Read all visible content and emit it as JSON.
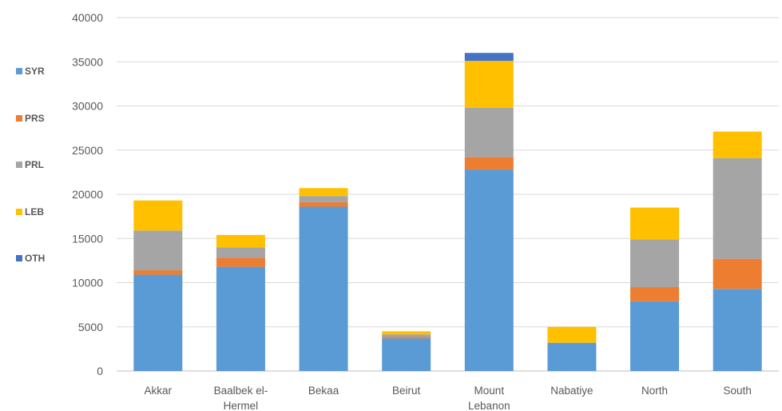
{
  "chart_data": {
    "type": "bar",
    "stacked": true,
    "title": "",
    "xlabel": "",
    "ylabel": "",
    "ylim": [
      0,
      40000
    ],
    "yticks": [
      0,
      5000,
      10000,
      15000,
      20000,
      25000,
      30000,
      35000,
      40000
    ],
    "grid": true,
    "legend_position": "left",
    "categories": [
      "Akkar",
      "Baalbek el-Hermel",
      "Bekaa",
      "Beirut",
      "Mount Lebanon",
      "Nabatiye",
      "North",
      "South"
    ],
    "series": [
      {
        "name": "SYR",
        "color": "#5B9BD5",
        "values": [
          10900,
          11800,
          18600,
          3700,
          22800,
          3200,
          7900,
          9300
        ]
      },
      {
        "name": "PRS",
        "color": "#ED7D31",
        "values": [
          500,
          1000,
          500,
          150,
          1400,
          0,
          1600,
          3400
        ]
      },
      {
        "name": "PRL",
        "color": "#A5A5A5",
        "values": [
          4500,
          1200,
          700,
          300,
          5600,
          0,
          5400,
          11400
        ]
      },
      {
        "name": "LEB",
        "color": "#FFC000",
        "values": [
          3400,
          1400,
          900,
          350,
          5300,
          1800,
          3600,
          3000
        ]
      },
      {
        "name": "OTH",
        "color": "#4472C4",
        "values": [
          0,
          0,
          0,
          0,
          900,
          0,
          0,
          0
        ]
      }
    ]
  }
}
